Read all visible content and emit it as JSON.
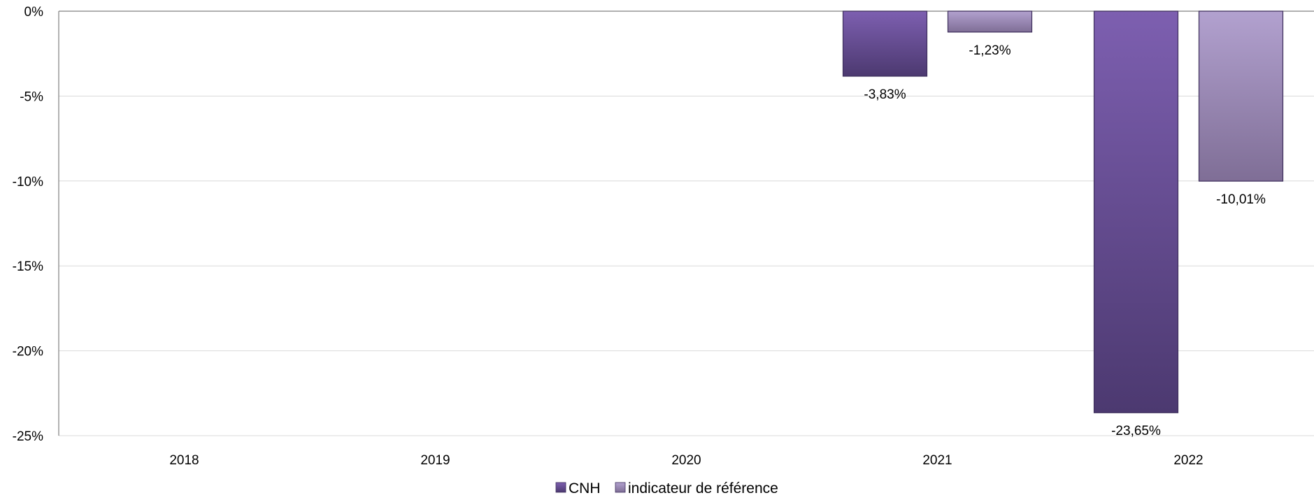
{
  "chart_data": {
    "type": "bar",
    "categories": [
      "2018",
      "2019",
      "2020",
      "2021",
      "2022"
    ],
    "series": [
      {
        "name": "CNH",
        "values": [
          null,
          null,
          null,
          -3.83,
          -23.65
        ],
        "labels": [
          "",
          "",
          "",
          "-3,83%",
          "-23,65%"
        ],
        "color": "#5f4790"
      },
      {
        "name": "indicateur de référence",
        "values": [
          null,
          null,
          null,
          -1.23,
          -10.01
        ],
        "labels": [
          "",
          "",
          "",
          "-1,23%",
          "-10,01%"
        ],
        "color": "#9a87b8"
      }
    ],
    "ylim": [
      -25,
      0
    ],
    "yticks": [
      0,
      -5,
      -10,
      -15,
      -20,
      -25
    ],
    "ytick_labels": [
      "0%",
      "-5%",
      "-10%",
      "-15%",
      "-20%",
      "-25%"
    ],
    "grid": true,
    "legend_position": "bottom-center",
    "xlabel": "",
    "ylabel": "",
    "title": ""
  }
}
